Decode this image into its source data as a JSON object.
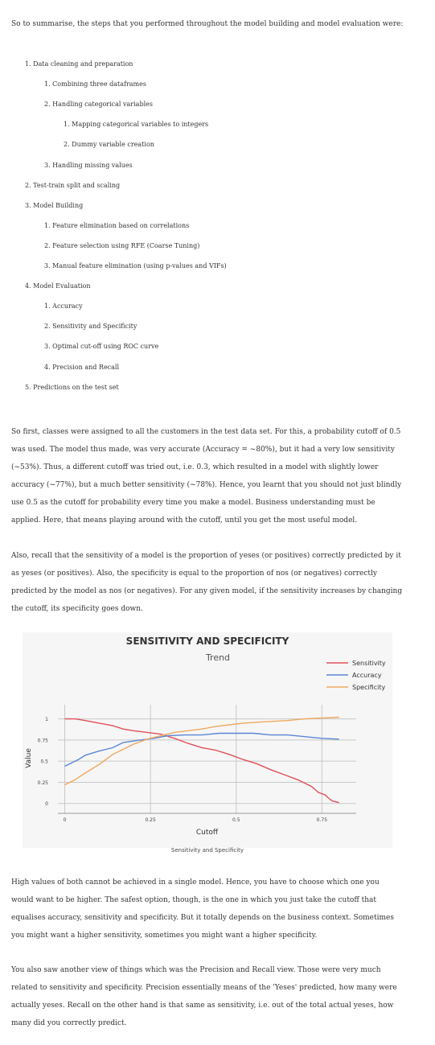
{
  "intro": "So to summarise, the steps that you performed throughout the model building and model evaluation were:",
  "steps": [
    {
      "text": "1. Data cleaning and preparation",
      "level": 1
    },
    {
      "text": "1. Combining three dataframes",
      "level": 2
    },
    {
      "text": "2. Handling categorical variables",
      "level": 2
    },
    {
      "text": "1. Mapping categorical variables to integers",
      "level": 3
    },
    {
      "text": "2. Dummy variable creation",
      "level": 3
    },
    {
      "text": "3. Handling missing values",
      "level": 2
    },
    {
      "text": "2. Test-train split and scaling",
      "level": 1
    },
    {
      "text": "3. Model Building",
      "level": 1
    },
    {
      "text": "1. Feature elimination based on correlations",
      "level": 2
    },
    {
      "text": "2. Feature selection using RFE (Coarse Tuning)",
      "level": 2
    },
    {
      "text": "3. Manual feature elimination (using p-values and VIFs)",
      "level": 2
    },
    {
      "text": "4. Model Evaluation",
      "level": 1
    },
    {
      "text": "1. Accuracy",
      "level": 2
    },
    {
      "text": "2. Sensitivity and Specificity",
      "level": 2
    },
    {
      "text": "3. Optimal cut-off using ROC curve",
      "level": 2
    },
    {
      "text": "4. Precision and Recall",
      "level": 2
    },
    {
      "text": "5. Predictions on the test set",
      "level": 1
    }
  ],
  "para1": "So first, classes were assigned to all the customers in the test data set. For this, a probability cutoff of 0.5 was used. The model thus made, was very accurate (Accuracy = ~80%), but it had a very low sensitivity (~53%). Thus, a different cutoff was tried out, i.e. 0.3, which resulted in a model with slightly lower accuracy (~77%), but a much better sensitivity (~78%). Hence, you learnt that you should not just blindly use 0.5 as the cutoff for probability every time you make a model. Business understanding must be applied. Here, that means playing around with the cutoff, until you get the most useful model.",
  "para2": "Also, recall that the sensitivity of a model is the proportion of yeses (or positives) correctly predicted by it as yeses (or positives). Also, the specificity is equal to the proportion of nos (or negatives) correctly predicted by the model as nos (or negatives). For any given model, if the sensitivity increases by changing the cutoff, its specificity goes down.",
  "chart_data": {
    "type": "line",
    "title": "SENSITIVITY AND SPECIFICITY",
    "subtitle": "Trend",
    "xlabel": "Cutoff",
    "ylabel": "Value",
    "caption": "Sensitivity and Specificity",
    "xlim": [
      -0.02,
      0.85
    ],
    "ylim": [
      -0.05,
      1.12
    ],
    "xticks": [
      "0",
      "0.25",
      "0.5",
      "0.75"
    ],
    "yticks": [
      "0",
      "0.25",
      "0.5",
      "0.75",
      "1"
    ],
    "grid": true,
    "legend_position": "top-right",
    "series": [
      {
        "name": "Sensitivity",
        "color": "#e0505a",
        "x": [
          0.0,
          0.03,
          0.06,
          0.1,
          0.14,
          0.17,
          0.2,
          0.24,
          0.28,
          0.32,
          0.36,
          0.4,
          0.44,
          0.48,
          0.52,
          0.56,
          0.6,
          0.64,
          0.68,
          0.72,
          0.74,
          0.76,
          0.77,
          0.78,
          0.8
        ],
        "y": [
          1.0,
          1.0,
          0.98,
          0.95,
          0.92,
          0.88,
          0.86,
          0.84,
          0.82,
          0.77,
          0.71,
          0.66,
          0.63,
          0.58,
          0.52,
          0.47,
          0.4,
          0.34,
          0.28,
          0.2,
          0.13,
          0.1,
          0.06,
          0.03,
          0.01
        ]
      },
      {
        "name": "Accuracy",
        "color": "#5b85d6",
        "x": [
          0.0,
          0.04,
          0.06,
          0.1,
          0.14,
          0.17,
          0.22,
          0.26,
          0.3,
          0.35,
          0.4,
          0.45,
          0.5,
          0.55,
          0.6,
          0.65,
          0.7,
          0.75,
          0.8
        ],
        "y": [
          0.44,
          0.52,
          0.57,
          0.62,
          0.66,
          0.72,
          0.75,
          0.77,
          0.8,
          0.81,
          0.81,
          0.83,
          0.83,
          0.83,
          0.81,
          0.81,
          0.79,
          0.77,
          0.76
        ]
      },
      {
        "name": "Specificity",
        "color": "#f0a860",
        "x": [
          0.0,
          0.03,
          0.06,
          0.1,
          0.12,
          0.14,
          0.17,
          0.2,
          0.24,
          0.28,
          0.32,
          0.36,
          0.4,
          0.44,
          0.48,
          0.52,
          0.56,
          0.6,
          0.65,
          0.7,
          0.75,
          0.8
        ],
        "y": [
          0.22,
          0.28,
          0.36,
          0.46,
          0.52,
          0.58,
          0.64,
          0.7,
          0.76,
          0.8,
          0.84,
          0.86,
          0.88,
          0.91,
          0.93,
          0.95,
          0.96,
          0.97,
          0.98,
          1.0,
          1.01,
          1.02
        ]
      }
    ]
  },
  "para3": "High values of both cannot be achieved in a single model. Hence, you have to choose which one you would want to be higher. The safest option, though, is the one in which you just take the cutoff that equalises accuracy, sensitivity and specificity. But it totally depends on the business context. Sometimes you might want a higher sensitivity, sometimes you might want a higher specificity.",
  "para4": "You also saw another view of things which was the Precision and Recall view. Those were very much related to sensitivity and specificity. Precision essentially means of the 'Yeses' predicted, how many were actually yeses. Recall on the other hand is that same as sensitivity, i.e. out of the total actual yeses, how many did you correctly predict."
}
